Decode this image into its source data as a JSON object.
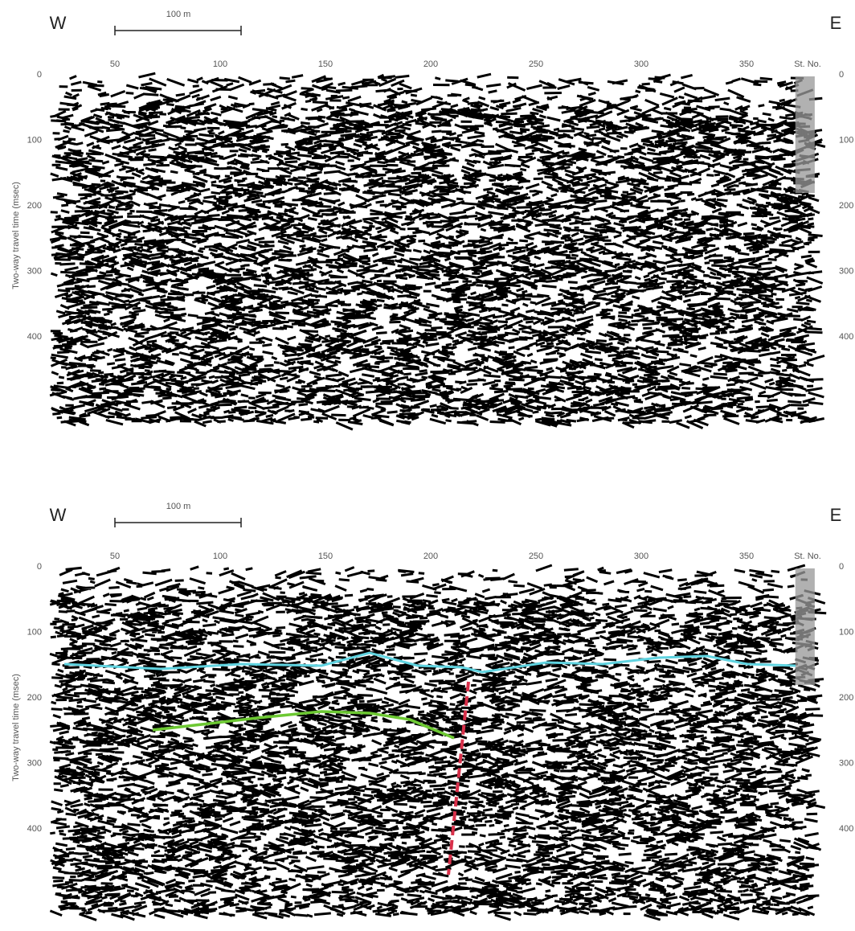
{
  "panels": [
    {
      "west_label": "W",
      "east_label": "E",
      "scale_label": "100 m",
      "station_ticks": [
        50,
        100,
        150,
        200,
        250,
        300,
        350
      ],
      "station_label": "St. No.",
      "time_ticks": [
        0,
        100,
        200,
        300,
        400
      ],
      "time_ticks_right": [
        0,
        100,
        200,
        300,
        400
      ],
      "time_axis_title": "Two-way travel time (msec)"
    },
    {
      "west_label": "W",
      "east_label": "E",
      "scale_label": "100 m",
      "station_ticks": [
        50,
        100,
        150,
        200,
        250,
        300,
        350
      ],
      "station_label": "St. No.",
      "time_ticks": [
        0,
        100,
        200,
        300,
        400
      ],
      "time_ticks_right": [
        0,
        100,
        200,
        300,
        400
      ],
      "time_axis_title": "Two-way travel time (msec)"
    }
  ]
}
